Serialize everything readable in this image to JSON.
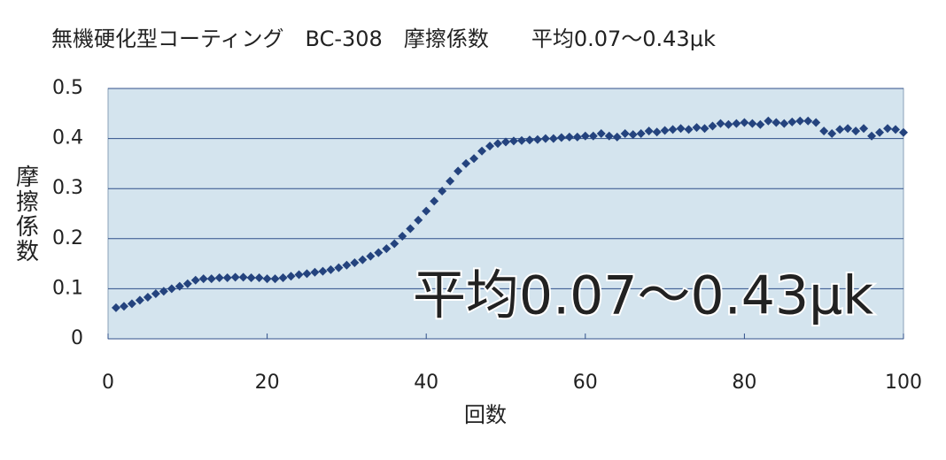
{
  "chart_data": {
    "type": "scatter",
    "title": "無機硬化型コーティング　BC-308　摩擦係数　　平均0.07～0.43μk",
    "annotation": "平均0.07～0.43μk",
    "x_label": "回数",
    "y_label": "摩擦係数",
    "x": [
      1,
      2,
      3,
      4,
      5,
      6,
      7,
      8,
      9,
      10,
      11,
      12,
      13,
      14,
      15,
      16,
      17,
      18,
      19,
      20,
      21,
      22,
      23,
      24,
      25,
      26,
      27,
      28,
      29,
      30,
      31,
      32,
      33,
      34,
      35,
      36,
      37,
      38,
      39,
      40,
      41,
      42,
      43,
      44,
      45,
      46,
      47,
      48,
      49,
      50,
      51,
      52,
      53,
      54,
      55,
      56,
      57,
      58,
      59,
      60,
      61,
      62,
      63,
      64,
      65,
      66,
      67,
      68,
      69,
      70,
      71,
      72,
      73,
      74,
      75,
      76,
      77,
      78,
      79,
      80,
      81,
      82,
      83,
      84,
      85,
      86,
      87,
      88,
      89,
      90,
      91,
      92,
      93,
      94,
      95,
      96,
      97,
      98,
      99,
      100
    ],
    "series": [
      {
        "color": "#24437e",
        "values": [
          0.062,
          0.065,
          0.07,
          0.077,
          0.083,
          0.09,
          0.095,
          0.1,
          0.105,
          0.11,
          0.117,
          0.12,
          0.12,
          0.122,
          0.122,
          0.123,
          0.123,
          0.122,
          0.122,
          0.12,
          0.12,
          0.122,
          0.125,
          0.128,
          0.13,
          0.133,
          0.135,
          0.138,
          0.142,
          0.147,
          0.152,
          0.158,
          0.165,
          0.172,
          0.18,
          0.19,
          0.205,
          0.22,
          0.237,
          0.255,
          0.275,
          0.295,
          0.315,
          0.335,
          0.35,
          0.36,
          0.375,
          0.385,
          0.39,
          0.393,
          0.395,
          0.396,
          0.397,
          0.398,
          0.4,
          0.4,
          0.402,
          0.403,
          0.403,
          0.405,
          0.405,
          0.41,
          0.405,
          0.403,
          0.41,
          0.408,
          0.41,
          0.415,
          0.413,
          0.416,
          0.418,
          0.42,
          0.418,
          0.422,
          0.42,
          0.425,
          0.43,
          0.428,
          0.43,
          0.432,
          0.43,
          0.428,
          0.435,
          0.432,
          0.43,
          0.433,
          0.435,
          0.435,
          0.432,
          0.415,
          0.41,
          0.418,
          0.42,
          0.415,
          0.42,
          0.405,
          0.412,
          0.42,
          0.418,
          0.412
        ]
      }
    ],
    "xlim": [
      0,
      100
    ],
    "xticks": [
      0,
      20,
      40,
      60,
      80,
      100
    ],
    "ylim": [
      0,
      0.5
    ],
    "yticks": [
      0,
      0.1,
      0.2,
      0.3,
      0.4,
      0.5
    ],
    "grid": true,
    "plot_background": "#d4e4ee",
    "annotation_color": "#e82028"
  }
}
